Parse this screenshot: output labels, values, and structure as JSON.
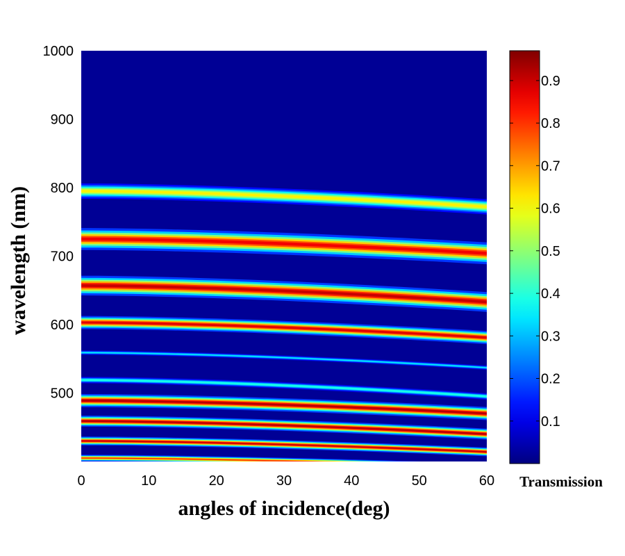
{
  "chart_data": {
    "type": "heatmap",
    "xlabel": "angles of incidence(deg)",
    "ylabel": "wavelength (nm)",
    "xlim": [
      0,
      60
    ],
    "ylim": [
      400,
      1000
    ],
    "x_ticks": [
      "0",
      "10",
      "20",
      "30",
      "40",
      "50",
      "60"
    ],
    "y_ticks": [
      "500",
      "600",
      "700",
      "800",
      "900",
      "1000"
    ],
    "colorbar": {
      "label": "Transmission",
      "range": [
        0,
        0.97
      ],
      "ticks": [
        "0.1",
        "0.2",
        "0.3",
        "0.4",
        "0.5",
        "0.6",
        "0.7",
        "0.8",
        "0.9"
      ],
      "colormap": "jet"
    },
    "background_level": 0.02,
    "bands": [
      {
        "center_nm_at_0deg": 795,
        "center_nm_at_60deg": 772,
        "half_width_nm": 7,
        "peak": 0.62
      },
      {
        "center_nm_at_0deg": 725,
        "center_nm_at_60deg": 704,
        "half_width_nm": 10,
        "peak": 0.86
      },
      {
        "center_nm_at_0deg": 657,
        "center_nm_at_60deg": 633,
        "half_width_nm": 9,
        "peak": 0.9
      },
      {
        "center_nm_at_0deg": 603,
        "center_nm_at_60deg": 581,
        "half_width_nm": 6,
        "peak": 0.88
      },
      {
        "center_nm_at_0deg": 559,
        "center_nm_at_60deg": 537,
        "half_width_nm": 2,
        "peak": 0.35
      },
      {
        "center_nm_at_0deg": 519,
        "center_nm_at_60deg": 495,
        "half_width_nm": 3,
        "peak": 0.4
      },
      {
        "center_nm_at_0deg": 489,
        "center_nm_at_60deg": 470,
        "half_width_nm": 6,
        "peak": 0.92
      },
      {
        "center_nm_at_0deg": 459,
        "center_nm_at_60deg": 440,
        "half_width_nm": 5,
        "peak": 0.92
      },
      {
        "center_nm_at_0deg": 430,
        "center_nm_at_60deg": 414,
        "half_width_nm": 4,
        "peak": 0.9
      },
      {
        "center_nm_at_0deg": 405,
        "center_nm_at_60deg": 392,
        "half_width_nm": 3,
        "peak": 0.8
      }
    ]
  }
}
